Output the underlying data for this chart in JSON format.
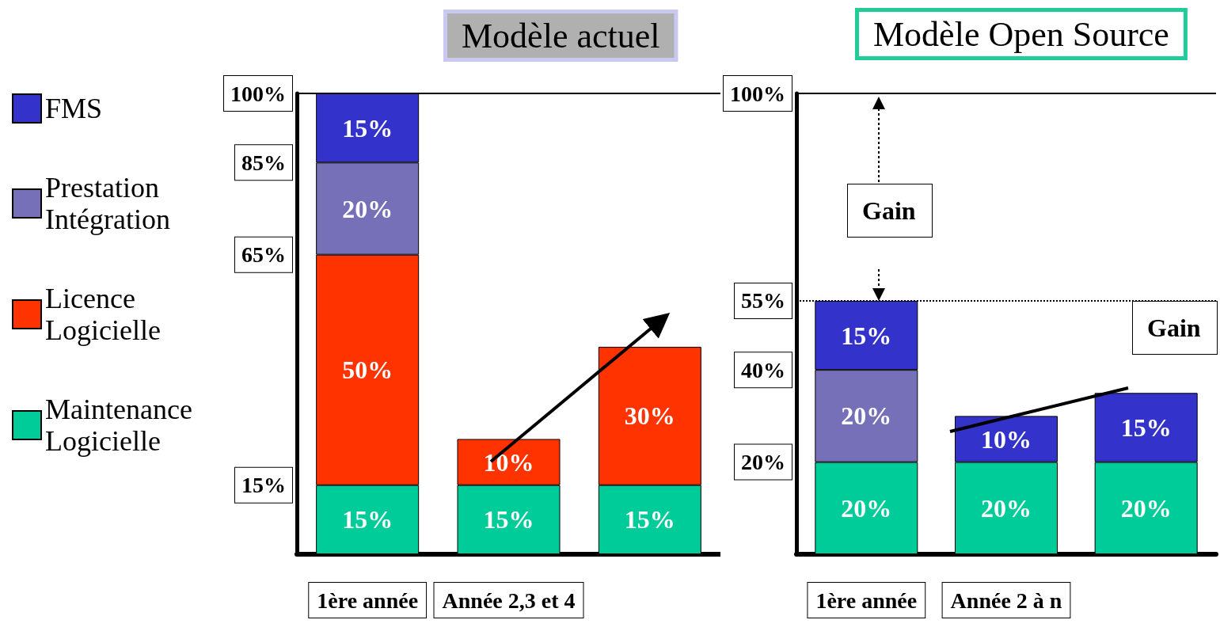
{
  "chart_data": [
    {
      "type": "bar",
      "title": "Modèle actuel",
      "stacked": true,
      "legend": "left",
      "categories": [
        "1ère année",
        "Année 2,3 et 4",
        null
      ],
      "ylim": [
        0,
        100
      ],
      "yticks": [
        {
          "value": 15,
          "label": "15%"
        },
        {
          "value": 65,
          "label": "65%"
        },
        {
          "value": 85,
          "label": "85%"
        },
        {
          "value": 100,
          "label": "100%"
        }
      ],
      "series": [
        {
          "name": "Maintenance Logicielle",
          "color": "#00cc99",
          "values": [
            15,
            15,
            15
          ],
          "value_labels": [
            "15%",
            "15%",
            "15%"
          ]
        },
        {
          "name": "Licence Logicielle",
          "color": "#ff3300",
          "values": [
            50,
            10,
            30
          ],
          "value_labels": [
            "50%",
            "10%",
            "30%"
          ]
        },
        {
          "name": "Prestation Intégration",
          "color": "#7570b8",
          "values": [
            20,
            null,
            null
          ],
          "value_labels": [
            "20%",
            null,
            null
          ]
        },
        {
          "name": "FMS",
          "color": "#3333cc",
          "values": [
            15,
            null,
            null
          ],
          "value_labels": [
            "15%",
            null,
            null
          ]
        }
      ],
      "ref_lines": [
        {
          "axis": "y",
          "value": 100,
          "color": "#000000",
          "line_style": "solid"
        }
      ]
    },
    {
      "type": "bar",
      "title": "Modèle Open Source",
      "stacked": true,
      "legend": false,
      "categories": [
        "1ère année",
        "Année 2 à n",
        null
      ],
      "ylim": [
        0,
        100
      ],
      "yticks": [
        {
          "value": 20,
          "label": "20%"
        },
        {
          "value": 40,
          "label": "40%"
        },
        {
          "value": 55,
          "label": "55%"
        },
        {
          "value": 100,
          "label": "100%"
        }
      ],
      "series": [
        {
          "color": "#00cc99",
          "values": [
            20,
            20,
            20
          ],
          "value_labels": [
            "20%",
            "20%",
            "20%"
          ]
        },
        {
          "color": "#7570b8",
          "values": [
            20,
            null,
            null
          ],
          "value_labels": [
            "20%",
            null,
            null
          ]
        },
        {
          "color": "#3333cc",
          "values": [
            15,
            10,
            15
          ],
          "value_labels": [
            "15%",
            "10%",
            "15%"
          ]
        }
      ],
      "ref_lines": [
        {
          "axis": "y",
          "value": 100,
          "color": "#000000",
          "line_style": "solid"
        },
        {
          "axis": "y",
          "value": 55,
          "color": "#000000",
          "line_style": "dotted"
        }
      ],
      "annotations": [
        "Gain",
        "Gain"
      ]
    }
  ]
}
